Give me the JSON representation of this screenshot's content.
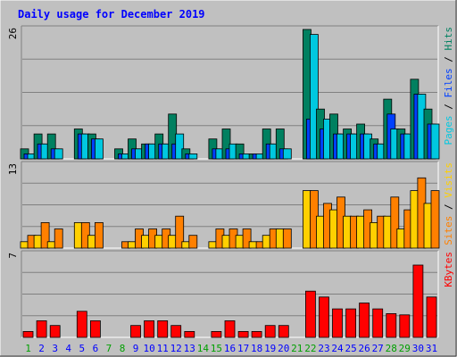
{
  "chart_data": {
    "type": "bar",
    "title": "Daily usage for December 2019",
    "categories": [
      "1",
      "2",
      "3",
      "4",
      "5",
      "6",
      "7",
      "8",
      "9",
      "10",
      "11",
      "12",
      "13",
      "14",
      "15",
      "16",
      "17",
      "18",
      "19",
      "20",
      "21",
      "22",
      "23",
      "24",
      "25",
      "26",
      "27",
      "28",
      "29",
      "30",
      "31"
    ],
    "weekend_days": [
      "1",
      "7",
      "8",
      "14",
      "15",
      "21",
      "22",
      "28",
      "29"
    ],
    "panels": [
      {
        "name": "hits-files-pages",
        "ymax": 26,
        "ymax_label": "26",
        "axis_label_parts": [
          {
            "text": "Pages",
            "color": "#00c8e0"
          },
          {
            "text": " / ",
            "color": "#000000"
          },
          {
            "text": "Files",
            "color": "#0040ff"
          },
          {
            "text": " / ",
            "color": "#000000"
          },
          {
            "text": "Hits",
            "color": "#008060"
          }
        ],
        "series": [
          {
            "name": "Hits",
            "color": "#008060",
            "values": [
              2,
              5,
              5,
              0,
              6,
              5,
              0,
              2,
              4,
              3,
              5,
              9,
              2,
              0,
              4,
              6,
              3,
              1,
              6,
              6,
              0,
              26,
              10,
              9,
              6,
              7,
              4,
              12,
              6,
              16,
              10
            ]
          },
          {
            "name": "Files",
            "color": "#0040ff",
            "values": [
              1,
              3,
              2,
              0,
              5,
              4,
              0,
              1,
              2,
              3,
              3,
              3,
              1,
              0,
              2,
              2,
              1,
              1,
              3,
              2,
              0,
              8,
              6,
              5,
              5,
              5,
              3,
              9,
              5,
              13,
              7
            ]
          },
          {
            "name": "Pages",
            "color": "#00c8e0",
            "values": [
              1,
              3,
              2,
              0,
              5,
              4,
              0,
              1,
              2,
              3,
              3,
              5,
              1,
              0,
              2,
              3,
              1,
              1,
              3,
              2,
              0,
              25,
              8,
              5,
              5,
              5,
              3,
              6,
              5,
              13,
              7
            ]
          }
        ]
      },
      {
        "name": "visits-sites",
        "ymax": 13,
        "ymax_label": "13",
        "axis_label_parts": [
          {
            "text": "Sites",
            "color": "#ff8000"
          },
          {
            "text": " / ",
            "color": "#000000"
          },
          {
            "text": "Visits",
            "color": "#ffd000"
          }
        ],
        "series": [
          {
            "name": "Visits",
            "color": "#ffd000",
            "values": [
              1,
              2,
              1,
              0,
              4,
              2,
              0,
              0,
              1,
              2,
              2,
              2,
              1,
              0,
              1,
              2,
              2,
              1,
              2,
              3,
              0,
              9,
              5,
              6,
              5,
              5,
              4,
              5,
              3,
              9,
              7
            ]
          },
          {
            "name": "Sites",
            "color": "#ff8000",
            "values": [
              2,
              4,
              3,
              0,
              4,
              4,
              0,
              1,
              3,
              3,
              3,
              5,
              2,
              0,
              3,
              3,
              3,
              1,
              3,
              3,
              0,
              9,
              7,
              8,
              5,
              6,
              5,
              8,
              6,
              11,
              9
            ]
          }
        ]
      },
      {
        "name": "kbytes",
        "ymax": 7,
        "ymax_label": "7",
        "axis_label_parts": [
          {
            "text": "KBytes",
            "color": "#ff0000"
          }
        ],
        "series": [
          {
            "name": "KBytes",
            "color": "#ff0000",
            "values": [
              0.5,
              1.4,
              1,
              0,
              2.2,
              1.4,
              0,
              0,
              1,
              1.4,
              1.4,
              1,
              0.5,
              0,
              0.5,
              1.4,
              0.5,
              0.5,
              1,
              1,
              0,
              3.9,
              3.4,
              2.4,
              2.4,
              2.9,
              2.4,
              2,
              1.9,
              6.1,
              3.4
            ]
          }
        ]
      }
    ],
    "colors": {
      "background": "#c0c0c0",
      "plot_bg": "#c0c0c0",
      "grid": "#808080",
      "title": "#0000ff",
      "weekday_label": "#0000ff",
      "weekend_label": "#00a000"
    }
  }
}
